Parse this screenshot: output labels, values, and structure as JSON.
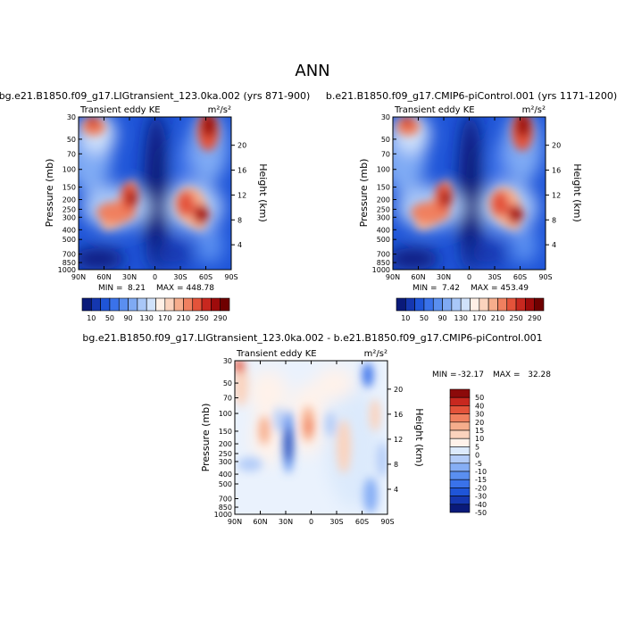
{
  "main_title": "ANN",
  "colors": {
    "ramp": [
      "#0a1a7a",
      "#1537b0",
      "#1f55d8",
      "#3a72ea",
      "#5a8ff0",
      "#7faaf4",
      "#a9c7f8",
      "#d0e2fb",
      "#fff0e6",
      "#fbd3bd",
      "#f6ad8c",
      "#f0805f",
      "#e4533a",
      "#c8281f",
      "#9e0b0b",
      "#6f0000"
    ],
    "diff": [
      "#0a1a7a",
      "#1537b0",
      "#1f55d8",
      "#3a72ea",
      "#5a8ff0",
      "#86aef5",
      "#b3ccf8",
      "#dceafc",
      "#fff2ea",
      "#fbd3bd",
      "#f6ad8c",
      "#f0805f",
      "#e4533a",
      "#c8281f",
      "#8c0a0a"
    ]
  },
  "chart_data": [
    {
      "type": "heatmap",
      "title": "bg.e21.B1850.f09_g17.LIGtransient_123.0ka.002 (yrs 871-900)",
      "left_label": "Transient eddy KE",
      "right_label": "m²/s²",
      "ylabel": "Pressure (mb)",
      "y2label": "Height (km)",
      "x_ticks": [
        "90N",
        "60N",
        "30N",
        "0",
        "30S",
        "60S",
        "90S"
      ],
      "y_ticks": [
        "30",
        "50",
        "70",
        "100",
        "150",
        "200",
        "250",
        "300",
        "400",
        "500",
        "700",
        "850",
        "1000"
      ],
      "y2_ticks": [
        "4",
        "8",
        "12",
        "16",
        "20"
      ],
      "min_label": "MIN =",
      "min_value": "8.21",
      "max_label": "MAX =",
      "max_value": "448.78",
      "colorbar_levels": [
        "10",
        "50",
        "90",
        "130",
        "170",
        "210",
        "250",
        "290"
      ],
      "xlim": [
        90,
        -90
      ],
      "ylim_mb": [
        30,
        1000
      ]
    },
    {
      "type": "heatmap",
      "title": "b.e21.B1850.f09_g17.CMIP6-piControl.001 (yrs 1171-1200)",
      "left_label": "Transient eddy KE",
      "right_label": "m²/s²",
      "ylabel": "Pressure (mb)",
      "y2label": "Height (km)",
      "x_ticks": [
        "90N",
        "60N",
        "30N",
        "0",
        "30S",
        "60S",
        "90S"
      ],
      "y_ticks": [
        "30",
        "50",
        "70",
        "100",
        "150",
        "200",
        "250",
        "300",
        "400",
        "500",
        "700",
        "850",
        "1000"
      ],
      "y2_ticks": [
        "4",
        "8",
        "12",
        "16",
        "20"
      ],
      "min_label": "MIN =",
      "min_value": "7.42",
      "max_label": "MAX =",
      "max_value": "453.49",
      "colorbar_levels": [
        "10",
        "50",
        "90",
        "130",
        "170",
        "210",
        "250",
        "290"
      ],
      "xlim": [
        90,
        -90
      ],
      "ylim_mb": [
        30,
        1000
      ]
    },
    {
      "type": "heatmap",
      "title": "bg.e21.B1850.f09_g17.LIGtransient_123.0ka.002 - b.e21.B1850.f09_g17.CMIP6-piControl.001",
      "left_label": "Transient eddy KE",
      "right_label": "m²/s²",
      "ylabel": "Pressure (mb)",
      "y2label": "Height (km)",
      "x_ticks": [
        "90N",
        "60N",
        "30N",
        "0",
        "30S",
        "60S",
        "90S"
      ],
      "y_ticks": [
        "30",
        "50",
        "70",
        "100",
        "150",
        "200",
        "250",
        "300",
        "400",
        "500",
        "700",
        "850",
        "1000"
      ],
      "y2_ticks": [
        "4",
        "8",
        "12",
        "16",
        "20"
      ],
      "min_label": "MIN =",
      "min_value": "-32.17",
      "max_label": "MAX =",
      "max_value": "32.28",
      "colorbar_levels": [
        "50",
        "40",
        "30",
        "20",
        "15",
        "10",
        "5",
        "0",
        "-5",
        "-10",
        "-15",
        "-20",
        "-30",
        "-40",
        "-50"
      ],
      "xlim": [
        90,
        -90
      ],
      "ylim_mb": [
        30,
        1000
      ]
    }
  ]
}
